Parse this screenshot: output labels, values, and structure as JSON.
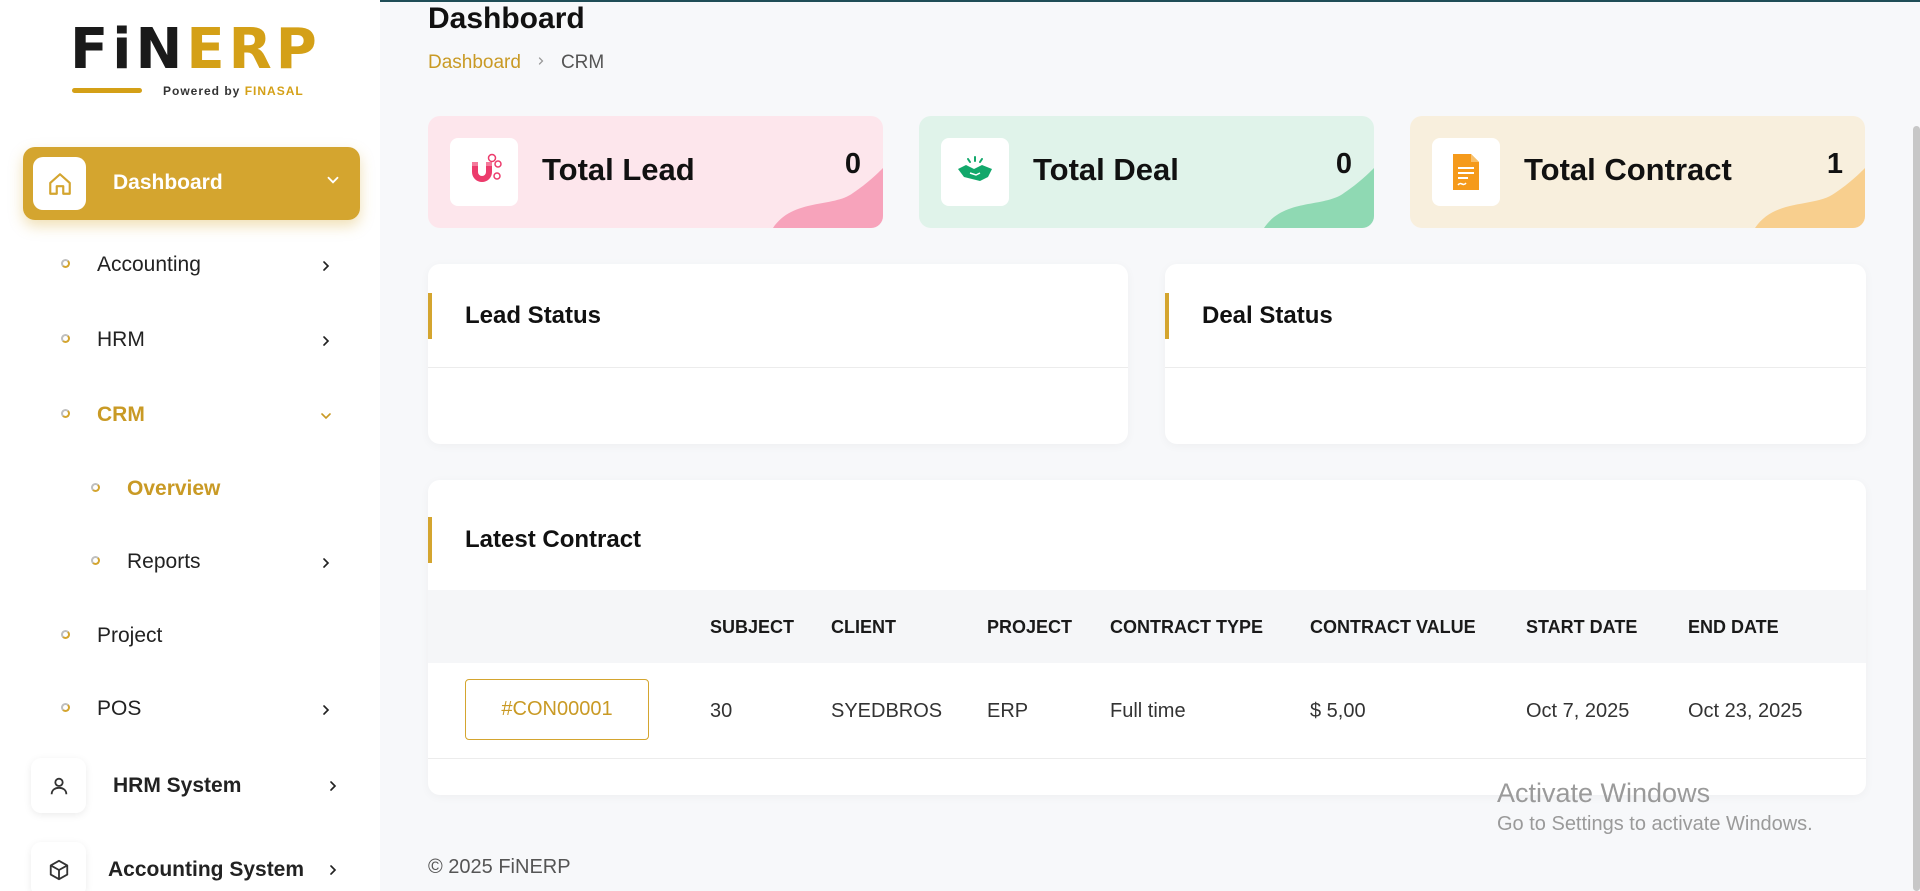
{
  "app": {
    "logo_text_a": "FiN",
    "logo_text_b": "ERP",
    "logo_powered": "Powered by",
    "logo_brand": "FINASAL"
  },
  "sidebar": {
    "dashboard": "Dashboard",
    "items": [
      {
        "label": "Accounting"
      },
      {
        "label": "HRM"
      },
      {
        "label": "CRM"
      },
      {
        "label": "Overview"
      },
      {
        "label": "Reports"
      },
      {
        "label": "Project"
      },
      {
        "label": "POS"
      }
    ],
    "systems": [
      {
        "label": "HRM System"
      },
      {
        "label": "Accounting System"
      }
    ]
  },
  "header": {
    "title": "Dashboard",
    "breadcrumb": [
      "Dashboard",
      "CRM"
    ]
  },
  "stats": [
    {
      "title": "Total Lead",
      "value": "0",
      "color": "#fde6ec",
      "accent": "#f7a3bb",
      "icon": "magnet-icon"
    },
    {
      "title": "Total Deal",
      "value": "0",
      "color": "#e0f3ea",
      "accent": "#8fd9b3",
      "icon": "handshake-icon"
    },
    {
      "title": "Total Contract",
      "value": "1",
      "color": "#f8efdd",
      "accent": "#f8cf8e",
      "icon": "document-icon"
    }
  ],
  "panels": {
    "lead_status": "Lead Status",
    "deal_status": "Deal Status",
    "latest_contract": "Latest Contract"
  },
  "table": {
    "headers": [
      "SUBJECT",
      "CLIENT",
      "PROJECT",
      "CONTRACT TYPE",
      "CONTRACT VALUE",
      "START DATE",
      "END DATE"
    ],
    "rows": [
      {
        "id": "#CON00001",
        "subject": "30",
        "client": "SYEDBROS",
        "project": "ERP",
        "type": "Full time",
        "value": "$ 5,00",
        "start": "Oct 7, 2025",
        "end": "Oct 23, 2025"
      }
    ]
  },
  "footer": "© 2025 FiNERP",
  "watermark": {
    "line1": "Activate Windows",
    "line2": "Go to Settings to activate Windows."
  },
  "colors": {
    "accent": "#d4a52f",
    "accent_text": "#c99a25"
  }
}
